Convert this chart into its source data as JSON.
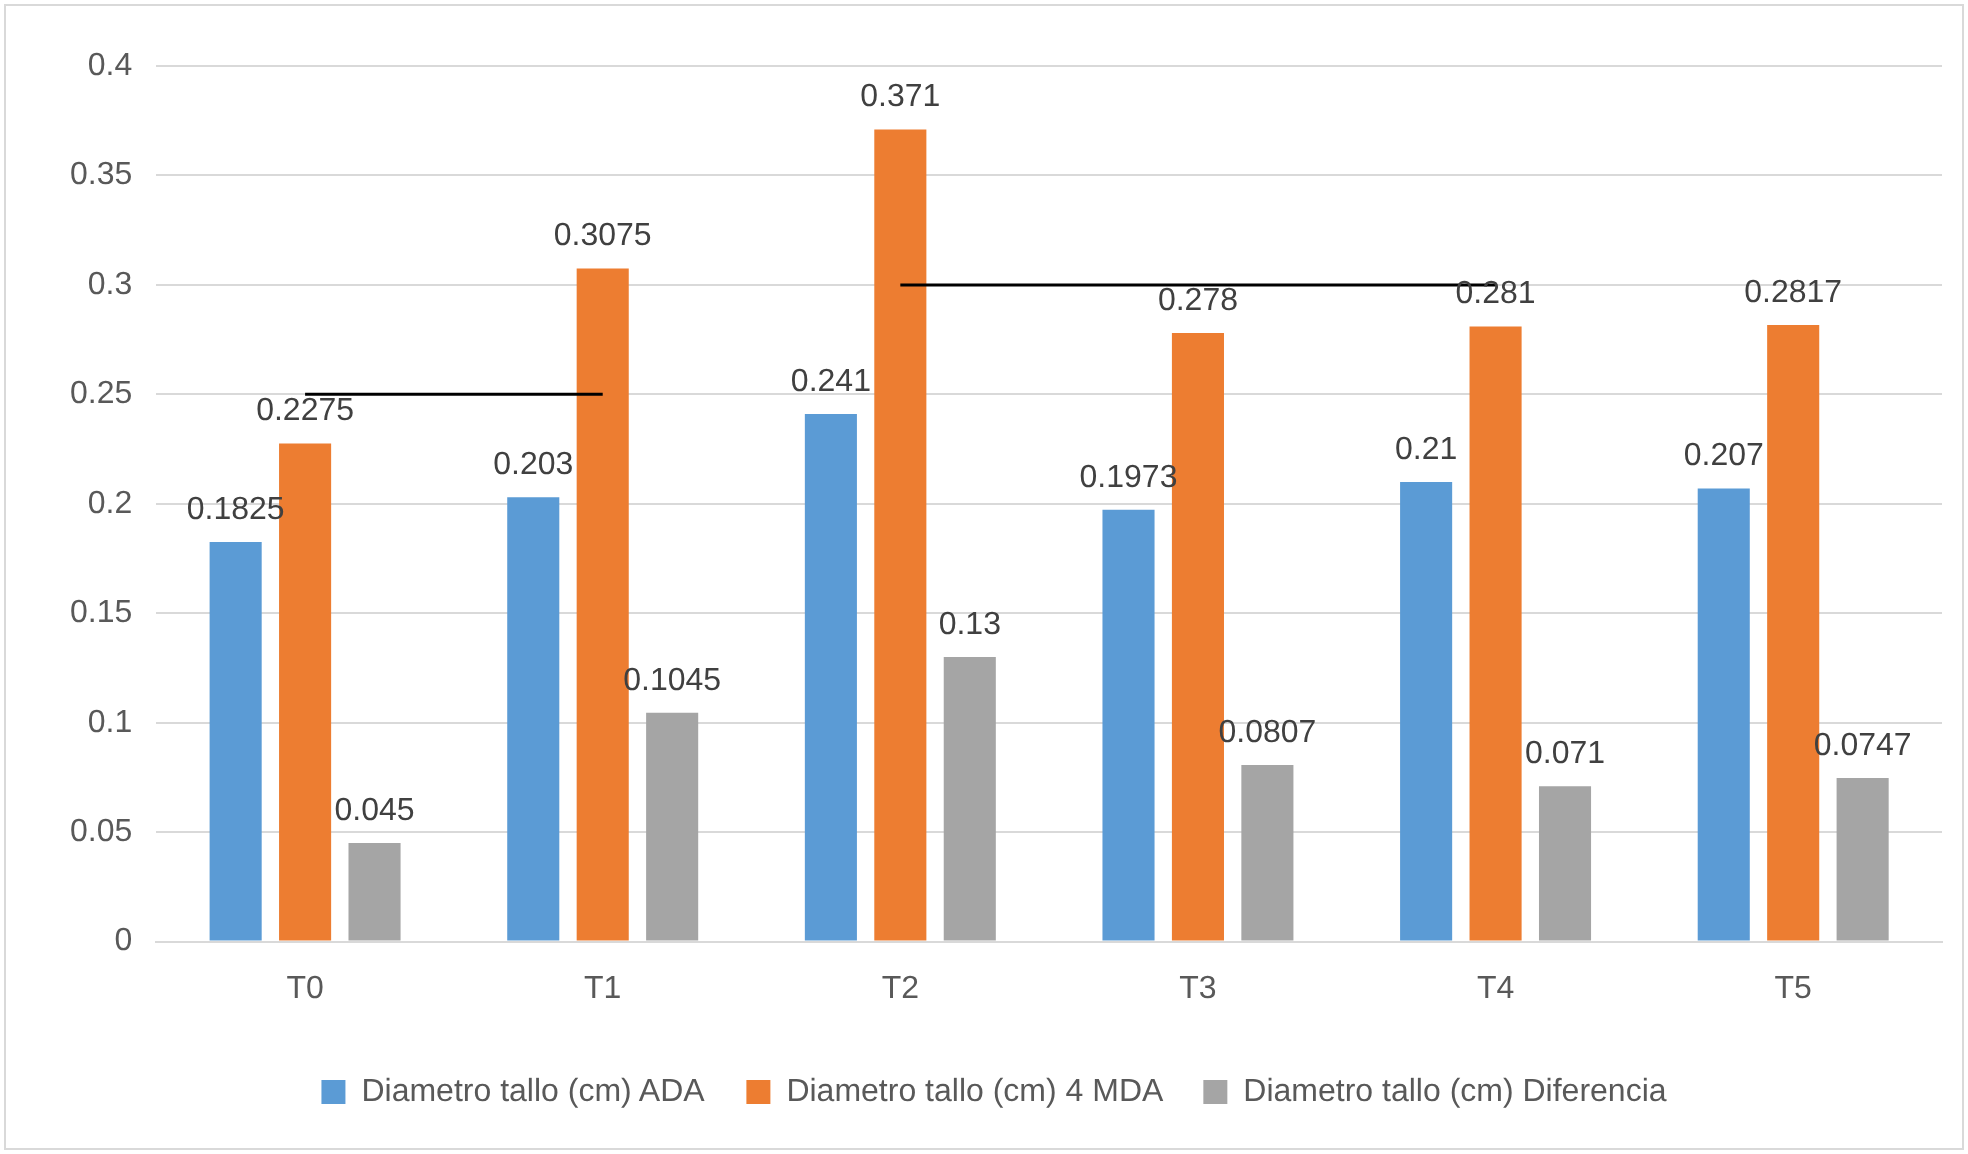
{
  "chart_data": {
    "type": "bar",
    "categories": [
      "T0",
      "T1",
      "T2",
      "T3",
      "T4",
      "T5"
    ],
    "series": [
      {
        "name": "Diametro tallo (cm) ADA",
        "color": "#5b9bd5",
        "values": [
          0.1825,
          0.203,
          0.241,
          0.1973,
          0.21,
          0.207
        ],
        "value_labels": [
          "0.1825",
          "0.203",
          "0.241",
          "0.1973",
          "0.21",
          "0.207"
        ]
      },
      {
        "name": "Diametro tallo (cm) 4 MDA",
        "color": "#ed7d31",
        "values": [
          0.2275,
          0.3075,
          0.371,
          0.278,
          0.281,
          0.2817
        ],
        "value_labels": [
          "0.2275",
          "0.3075",
          "0.371",
          "0.278",
          "0.281",
          "0.2817"
        ]
      },
      {
        "name": "Diametro tallo (cm) Diferencia",
        "color": "#a5a5a5",
        "values": [
          0.045,
          0.1045,
          0.13,
          0.0807,
          0.071,
          0.0747
        ],
        "value_labels": [
          "0.045",
          "0.1045",
          "0.13",
          "0.0807",
          "0.071",
          "0.0747"
        ]
      },
      {
        "type": "line",
        "color": "#000000",
        "values": [
          0.25,
          0.25,
          null,
          null,
          null,
          null
        ]
      },
      {
        "type": "line",
        "color": "#000000",
        "values": [
          null,
          null,
          0.3,
          0.3,
          0.3,
          null
        ]
      }
    ],
    "ylim": [
      0,
      0.4
    ],
    "yticks": [
      0,
      0.05,
      0.1,
      0.15,
      0.2,
      0.25,
      0.3,
      0.35,
      0.4
    ],
    "grid": "y",
    "legend": "bottom",
    "marker": "none"
  }
}
